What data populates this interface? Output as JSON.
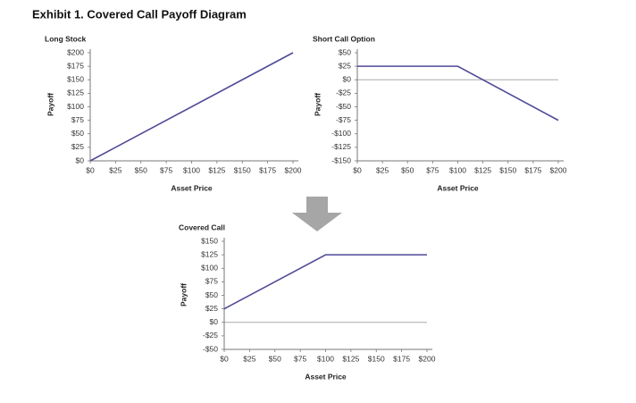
{
  "title": "Exhibit 1.  Covered Call Payoff Diagram",
  "chart_data": [
    {
      "type": "line",
      "title": "Long Stock",
      "x_label": "Asset Price",
      "y_label": "Payoff",
      "x": [
        0,
        200
      ],
      "series": [
        {
          "color": "#4f4a97",
          "values": [
            0,
            200
          ]
        }
      ],
      "xlim": [
        0,
        200
      ],
      "xticks": [
        {
          "value": 0,
          "label": "$0"
        },
        {
          "value": 25,
          "label": "$25"
        },
        {
          "value": 50,
          "label": "$50"
        },
        {
          "value": 75,
          "label": "$75"
        },
        {
          "value": 100,
          "label": "$100"
        },
        {
          "value": 125,
          "label": "$125"
        },
        {
          "value": 150,
          "label": "$150"
        },
        {
          "value": 175,
          "label": "$175"
        },
        {
          "value": 200,
          "label": "$200"
        }
      ],
      "ylim": [
        0,
        200
      ],
      "yticks": [
        {
          "value": 0,
          "label": "$0"
        },
        {
          "value": 25,
          "label": "$25"
        },
        {
          "value": 50,
          "label": "$50"
        },
        {
          "value": 75,
          "label": "$75"
        },
        {
          "value": 100,
          "label": "$100"
        },
        {
          "value": 125,
          "label": "$125"
        },
        {
          "value": 150,
          "label": "$150"
        },
        {
          "value": 175,
          "label": "$175"
        },
        {
          "value": 200,
          "label": "$200"
        }
      ]
    },
    {
      "type": "line",
      "title": "Short Call Option",
      "x_label": "Asset Price",
      "y_label": "Payoff",
      "x": [
        0,
        100,
        200
      ],
      "series": [
        {
          "color": "#4f4a97",
          "values": [
            25,
            25,
            -75
          ]
        }
      ],
      "reference_line": {
        "value": 0,
        "color": "#aaaaaa"
      },
      "xlim": [
        0,
        200
      ],
      "xticks": [
        {
          "value": 0,
          "label": "$0"
        },
        {
          "value": 25,
          "label": "$25"
        },
        {
          "value": 50,
          "label": "$50"
        },
        {
          "value": 75,
          "label": "$75"
        },
        {
          "value": 100,
          "label": "$100"
        },
        {
          "value": 125,
          "label": "$125"
        },
        {
          "value": 150,
          "label": "$150"
        },
        {
          "value": 175,
          "label": "$175"
        },
        {
          "value": 200,
          "label": "$200"
        }
      ],
      "ylim": [
        -150,
        50
      ],
      "yticks": [
        {
          "value": -150,
          "label": "-$150"
        },
        {
          "value": -125,
          "label": "-$125"
        },
        {
          "value": -100,
          "label": "-$100"
        },
        {
          "value": -75,
          "label": "-$75"
        },
        {
          "value": -50,
          "label": "-$50"
        },
        {
          "value": -25,
          "label": "-$25"
        },
        {
          "value": 0,
          "label": "$0"
        },
        {
          "value": 25,
          "label": "$25"
        },
        {
          "value": 50,
          "label": "$50"
        }
      ]
    },
    {
      "type": "line",
      "title": "Covered Call",
      "x_label": "Asset Price",
      "y_label": "Payoff",
      "x": [
        0,
        100,
        200
      ],
      "series": [
        {
          "color": "#4f4a97",
          "values": [
            25,
            125,
            125
          ]
        }
      ],
      "reference_line": {
        "value": 0,
        "color": "#aaaaaa"
      },
      "xlim": [
        0,
        200
      ],
      "xticks": [
        {
          "value": 0,
          "label": "$0"
        },
        {
          "value": 25,
          "label": "$25"
        },
        {
          "value": 50,
          "label": "$50"
        },
        {
          "value": 75,
          "label": "$75"
        },
        {
          "value": 100,
          "label": "$100"
        },
        {
          "value": 125,
          "label": "$125"
        },
        {
          "value": 150,
          "label": "$150"
        },
        {
          "value": 175,
          "label": "$175"
        },
        {
          "value": 200,
          "label": "$200"
        }
      ],
      "ylim": [
        -50,
        150
      ],
      "yticks": [
        {
          "value": -50,
          "label": "-$50"
        },
        {
          "value": -25,
          "label": "-$25"
        },
        {
          "value": 0,
          "label": "$0"
        },
        {
          "value": 25,
          "label": "$25"
        },
        {
          "value": 50,
          "label": "$50"
        },
        {
          "value": 75,
          "label": "$75"
        },
        {
          "value": 100,
          "label": "$100"
        },
        {
          "value": 125,
          "label": "$125"
        },
        {
          "value": 150,
          "label": "$150"
        }
      ]
    }
  ]
}
